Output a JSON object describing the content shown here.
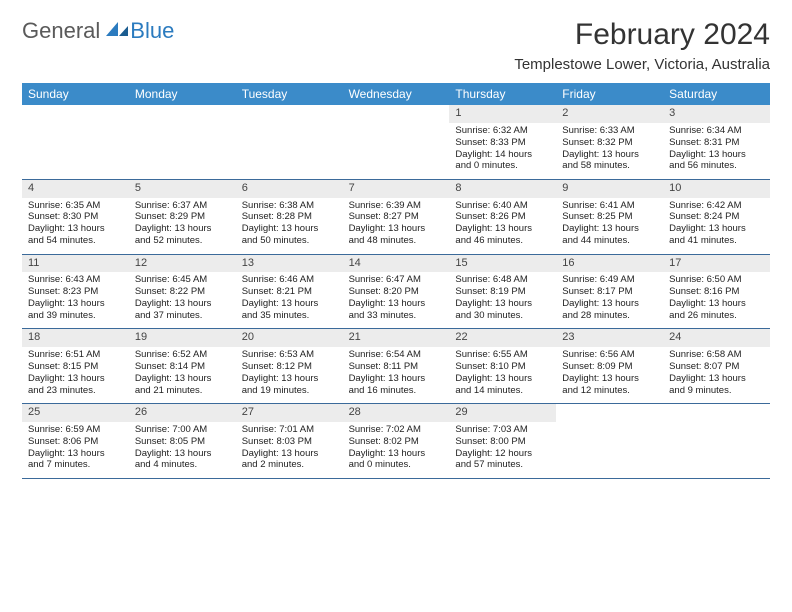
{
  "logo": {
    "text1": "General",
    "text2": "Blue"
  },
  "title": "February 2024",
  "location": "Templestowe Lower, Victoria, Australia",
  "colors": {
    "header_bg": "#3b8bc9",
    "header_text": "#ffffff",
    "daynum_bg": "#ececec",
    "week_divider": "#3b6a9a",
    "body_text": "#222222",
    "logo_gray": "#5a5a5a",
    "logo_blue": "#2b7bbf"
  },
  "day_names": [
    "Sunday",
    "Monday",
    "Tuesday",
    "Wednesday",
    "Thursday",
    "Friday",
    "Saturday"
  ],
  "weeks": [
    [
      {
        "n": "",
        "sunrise": "",
        "sunset": "",
        "daylight": ""
      },
      {
        "n": "",
        "sunrise": "",
        "sunset": "",
        "daylight": ""
      },
      {
        "n": "",
        "sunrise": "",
        "sunset": "",
        "daylight": ""
      },
      {
        "n": "",
        "sunrise": "",
        "sunset": "",
        "daylight": ""
      },
      {
        "n": "1",
        "sunrise": "Sunrise: 6:32 AM",
        "sunset": "Sunset: 8:33 PM",
        "daylight": "Daylight: 14 hours and 0 minutes."
      },
      {
        "n": "2",
        "sunrise": "Sunrise: 6:33 AM",
        "sunset": "Sunset: 8:32 PM",
        "daylight": "Daylight: 13 hours and 58 minutes."
      },
      {
        "n": "3",
        "sunrise": "Sunrise: 6:34 AM",
        "sunset": "Sunset: 8:31 PM",
        "daylight": "Daylight: 13 hours and 56 minutes."
      }
    ],
    [
      {
        "n": "4",
        "sunrise": "Sunrise: 6:35 AM",
        "sunset": "Sunset: 8:30 PM",
        "daylight": "Daylight: 13 hours and 54 minutes."
      },
      {
        "n": "5",
        "sunrise": "Sunrise: 6:37 AM",
        "sunset": "Sunset: 8:29 PM",
        "daylight": "Daylight: 13 hours and 52 minutes."
      },
      {
        "n": "6",
        "sunrise": "Sunrise: 6:38 AM",
        "sunset": "Sunset: 8:28 PM",
        "daylight": "Daylight: 13 hours and 50 minutes."
      },
      {
        "n": "7",
        "sunrise": "Sunrise: 6:39 AM",
        "sunset": "Sunset: 8:27 PM",
        "daylight": "Daylight: 13 hours and 48 minutes."
      },
      {
        "n": "8",
        "sunrise": "Sunrise: 6:40 AM",
        "sunset": "Sunset: 8:26 PM",
        "daylight": "Daylight: 13 hours and 46 minutes."
      },
      {
        "n": "9",
        "sunrise": "Sunrise: 6:41 AM",
        "sunset": "Sunset: 8:25 PM",
        "daylight": "Daylight: 13 hours and 44 minutes."
      },
      {
        "n": "10",
        "sunrise": "Sunrise: 6:42 AM",
        "sunset": "Sunset: 8:24 PM",
        "daylight": "Daylight: 13 hours and 41 minutes."
      }
    ],
    [
      {
        "n": "11",
        "sunrise": "Sunrise: 6:43 AM",
        "sunset": "Sunset: 8:23 PM",
        "daylight": "Daylight: 13 hours and 39 minutes."
      },
      {
        "n": "12",
        "sunrise": "Sunrise: 6:45 AM",
        "sunset": "Sunset: 8:22 PM",
        "daylight": "Daylight: 13 hours and 37 minutes."
      },
      {
        "n": "13",
        "sunrise": "Sunrise: 6:46 AM",
        "sunset": "Sunset: 8:21 PM",
        "daylight": "Daylight: 13 hours and 35 minutes."
      },
      {
        "n": "14",
        "sunrise": "Sunrise: 6:47 AM",
        "sunset": "Sunset: 8:20 PM",
        "daylight": "Daylight: 13 hours and 33 minutes."
      },
      {
        "n": "15",
        "sunrise": "Sunrise: 6:48 AM",
        "sunset": "Sunset: 8:19 PM",
        "daylight": "Daylight: 13 hours and 30 minutes."
      },
      {
        "n": "16",
        "sunrise": "Sunrise: 6:49 AM",
        "sunset": "Sunset: 8:17 PM",
        "daylight": "Daylight: 13 hours and 28 minutes."
      },
      {
        "n": "17",
        "sunrise": "Sunrise: 6:50 AM",
        "sunset": "Sunset: 8:16 PM",
        "daylight": "Daylight: 13 hours and 26 minutes."
      }
    ],
    [
      {
        "n": "18",
        "sunrise": "Sunrise: 6:51 AM",
        "sunset": "Sunset: 8:15 PM",
        "daylight": "Daylight: 13 hours and 23 minutes."
      },
      {
        "n": "19",
        "sunrise": "Sunrise: 6:52 AM",
        "sunset": "Sunset: 8:14 PM",
        "daylight": "Daylight: 13 hours and 21 minutes."
      },
      {
        "n": "20",
        "sunrise": "Sunrise: 6:53 AM",
        "sunset": "Sunset: 8:12 PM",
        "daylight": "Daylight: 13 hours and 19 minutes."
      },
      {
        "n": "21",
        "sunrise": "Sunrise: 6:54 AM",
        "sunset": "Sunset: 8:11 PM",
        "daylight": "Daylight: 13 hours and 16 minutes."
      },
      {
        "n": "22",
        "sunrise": "Sunrise: 6:55 AM",
        "sunset": "Sunset: 8:10 PM",
        "daylight": "Daylight: 13 hours and 14 minutes."
      },
      {
        "n": "23",
        "sunrise": "Sunrise: 6:56 AM",
        "sunset": "Sunset: 8:09 PM",
        "daylight": "Daylight: 13 hours and 12 minutes."
      },
      {
        "n": "24",
        "sunrise": "Sunrise: 6:58 AM",
        "sunset": "Sunset: 8:07 PM",
        "daylight": "Daylight: 13 hours and 9 minutes."
      }
    ],
    [
      {
        "n": "25",
        "sunrise": "Sunrise: 6:59 AM",
        "sunset": "Sunset: 8:06 PM",
        "daylight": "Daylight: 13 hours and 7 minutes."
      },
      {
        "n": "26",
        "sunrise": "Sunrise: 7:00 AM",
        "sunset": "Sunset: 8:05 PM",
        "daylight": "Daylight: 13 hours and 4 minutes."
      },
      {
        "n": "27",
        "sunrise": "Sunrise: 7:01 AM",
        "sunset": "Sunset: 8:03 PM",
        "daylight": "Daylight: 13 hours and 2 minutes."
      },
      {
        "n": "28",
        "sunrise": "Sunrise: 7:02 AM",
        "sunset": "Sunset: 8:02 PM",
        "daylight": "Daylight: 13 hours and 0 minutes."
      },
      {
        "n": "29",
        "sunrise": "Sunrise: 7:03 AM",
        "sunset": "Sunset: 8:00 PM",
        "daylight": "Daylight: 12 hours and 57 minutes."
      },
      {
        "n": "",
        "sunrise": "",
        "sunset": "",
        "daylight": ""
      },
      {
        "n": "",
        "sunrise": "",
        "sunset": "",
        "daylight": ""
      }
    ]
  ]
}
